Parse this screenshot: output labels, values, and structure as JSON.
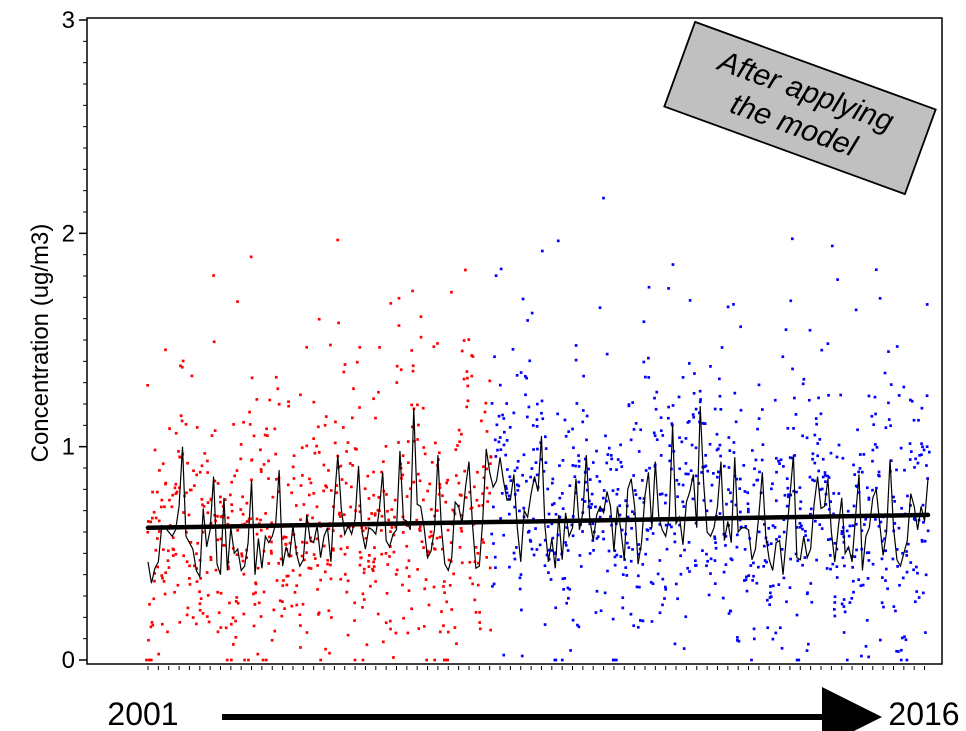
{
  "chart_data": {
    "type": "scatter",
    "title": "",
    "ylabel": "Concentration  (ug/m3)",
    "xlabel": "",
    "x_range": [
      "2001",
      "2016"
    ],
    "ylim": [
      0,
      3
    ],
    "yticks": [
      "0",
      "1",
      "2",
      "3"
    ],
    "grid": false,
    "annotation": {
      "lines": [
        "After applying",
        "the model"
      ]
    },
    "series_colors": {
      "before": "#ff0000",
      "after": "#0000ff",
      "monthly_mean": "#000000",
      "trend": "#000000"
    },
    "trend": {
      "start": 0.62,
      "end": 0.68
    },
    "monthly_mean": [
      0.46,
      0.36,
      0.43,
      0.46,
      0.63,
      0.62,
      0.6,
      0.58,
      0.61,
      0.72,
      1.0,
      0.58,
      0.55,
      0.52,
      0.42,
      0.39,
      0.71,
      0.53,
      0.61,
      0.86,
      0.45,
      0.4,
      0.76,
      0.42,
      0.62,
      0.5,
      0.52,
      0.42,
      0.44,
      0.55,
      0.84,
      0.4,
      0.57,
      0.43,
      0.58,
      0.55,
      0.58,
      0.64,
      0.89,
      0.44,
      0.53,
      0.48,
      0.63,
      0.5,
      0.44,
      0.47,
      0.68,
      0.56,
      0.55,
      0.63,
      0.48,
      0.58,
      0.62,
      0.46,
      0.75,
      0.96,
      0.71,
      0.59,
      0.63,
      0.59,
      0.66,
      0.91,
      0.6,
      0.52,
      0.62,
      0.61,
      0.59,
      0.7,
      0.88,
      0.56,
      0.53,
      0.59,
      0.61,
      0.98,
      0.66,
      0.65,
      0.61,
      1.18,
      0.73,
      0.72,
      0.62,
      0.48,
      0.51,
      0.61,
      0.96,
      0.62,
      0.45,
      0.42,
      0.48,
      0.74,
      0.72,
      0.64,
      0.81,
      0.93,
      0.64,
      0.43,
      0.44,
      0.66,
      0.99,
      0.88,
      0.81,
      0.84,
      0.95,
      0.84,
      0.75,
      0.75,
      0.87,
      0.62,
      0.46,
      0.7,
      0.67,
      0.78,
      0.86,
      0.79,
      1.05,
      0.63,
      0.46,
      0.57,
      0.43,
      0.68,
      0.47,
      0.69,
      0.58,
      0.62,
      0.85,
      0.61,
      0.69,
      0.96,
      0.66,
      0.56,
      0.68,
      0.72,
      0.69,
      0.79,
      0.72,
      0.51,
      0.72,
      0.61,
      0.47,
      0.8,
      0.85,
      0.72,
      0.45,
      0.55,
      0.77,
      0.88,
      0.62,
      0.93,
      0.67,
      0.61,
      0.58,
      0.67,
      1.1,
      0.64,
      0.67,
      0.54,
      0.74,
      0.79,
      0.87,
      0.62,
      1.19,
      0.83,
      0.6,
      0.58,
      0.62,
      0.72,
      0.93,
      0.56,
      0.65,
      0.55,
      0.95,
      0.6,
      0.62,
      0.62,
      0.61,
      0.47,
      0.52,
      0.68,
      0.88,
      0.58,
      0.47,
      0.42,
      0.55,
      0.56,
      0.4,
      0.58,
      0.77,
      0.96,
      0.48,
      0.47,
      0.58,
      0.48,
      0.52,
      0.73,
      0.86,
      0.71,
      0.72,
      0.85,
      0.6,
      0.46,
      0.62,
      0.76,
      0.5,
      0.53,
      0.46,
      0.67,
      0.87,
      0.42,
      0.58,
      0.62,
      0.76,
      0.8,
      0.64,
      0.49,
      0.6,
      0.94,
      0.62,
      0.47,
      0.44,
      0.5,
      0.56,
      0.78,
      0.72,
      0.61,
      0.72,
      0.65,
      0.85
    ]
  }
}
